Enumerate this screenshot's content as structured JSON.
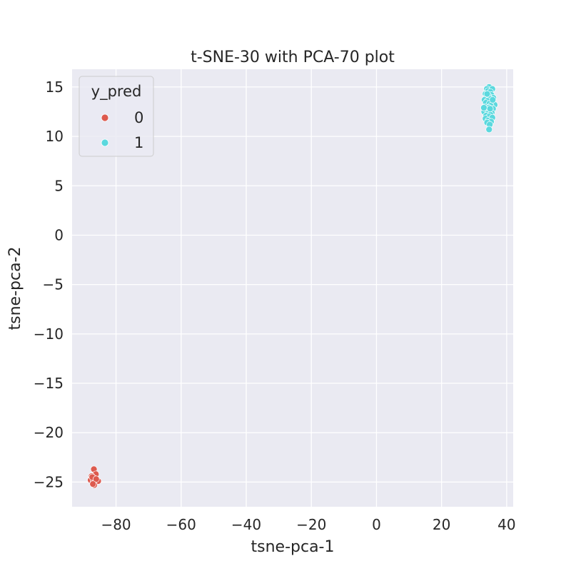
{
  "chart_data": {
    "type": "scatter",
    "title": "t-SNE-30 with PCA-70 plot",
    "xlabel": "tsne-pca-1",
    "ylabel": "tsne-pca-2",
    "xlim": [
      -93.5,
      42
    ],
    "ylim": [
      -27.5,
      16.8
    ],
    "xticks": [
      -80,
      -60,
      -40,
      -20,
      0,
      20,
      40
    ],
    "yticks": [
      15,
      10,
      5,
      0,
      -5,
      -10,
      -15,
      -20,
      -25
    ],
    "xtick_labels": [
      "−80",
      "−60",
      "−40",
      "−20",
      "0",
      "20",
      "40"
    ],
    "ytick_labels": [
      "15",
      "10",
      "5",
      "0",
      "−5",
      "−10",
      "−15",
      "−20",
      "−25"
    ],
    "grid": true,
    "legend": {
      "title": "y_pred",
      "placement": "top-left",
      "entries": [
        "0",
        "1"
      ]
    },
    "series": [
      {
        "name": "0",
        "color": "#dd5a4e",
        "points": [
          [
            -86.8,
            -23.7
          ],
          [
            -86.2,
            -24.2
          ],
          [
            -87.5,
            -24.4
          ],
          [
            -86.9,
            -24.6
          ],
          [
            -87.8,
            -24.8
          ],
          [
            -86.4,
            -24.9
          ],
          [
            -85.5,
            -24.9
          ],
          [
            -87.0,
            -25.0
          ],
          [
            -86.7,
            -25.3
          ],
          [
            -87.3,
            -24.5
          ],
          [
            -86.1,
            -24.7
          ],
          [
            -87.1,
            -25.2
          ]
        ]
      },
      {
        "name": "1",
        "color": "#5bd8de",
        "points": [
          [
            34.6,
            15.0
          ],
          [
            33.9,
            14.8
          ],
          [
            35.6,
            14.8
          ],
          [
            34.2,
            14.6
          ],
          [
            35.0,
            14.5
          ],
          [
            33.5,
            14.3
          ],
          [
            35.3,
            14.2
          ],
          [
            34.4,
            14.1
          ],
          [
            33.8,
            14.0
          ],
          [
            35.9,
            13.9
          ],
          [
            34.9,
            13.8
          ],
          [
            33.2,
            13.7
          ],
          [
            34.1,
            13.6
          ],
          [
            35.5,
            13.5
          ],
          [
            33.6,
            13.4
          ],
          [
            34.7,
            13.3
          ],
          [
            36.3,
            13.2
          ],
          [
            35.1,
            13.1
          ],
          [
            33.3,
            13.0
          ],
          [
            34.5,
            12.9
          ],
          [
            35.8,
            12.8
          ],
          [
            33.9,
            12.7
          ],
          [
            34.8,
            12.6
          ],
          [
            33.1,
            12.5
          ],
          [
            35.4,
            12.4
          ],
          [
            34.2,
            12.3
          ],
          [
            35.0,
            12.2
          ],
          [
            33.7,
            12.1
          ],
          [
            34.6,
            12.0
          ],
          [
            35.6,
            11.9
          ],
          [
            33.5,
            11.8
          ],
          [
            34.3,
            11.6
          ],
          [
            35.2,
            11.5
          ],
          [
            34.0,
            11.4
          ],
          [
            34.8,
            11.2
          ],
          [
            34.6,
            10.7
          ],
          [
            33.0,
            12.9
          ],
          [
            35.7,
            13.7
          ],
          [
            34.0,
            14.3
          ],
          [
            34.9,
            12.8
          ]
        ]
      }
    ]
  }
}
